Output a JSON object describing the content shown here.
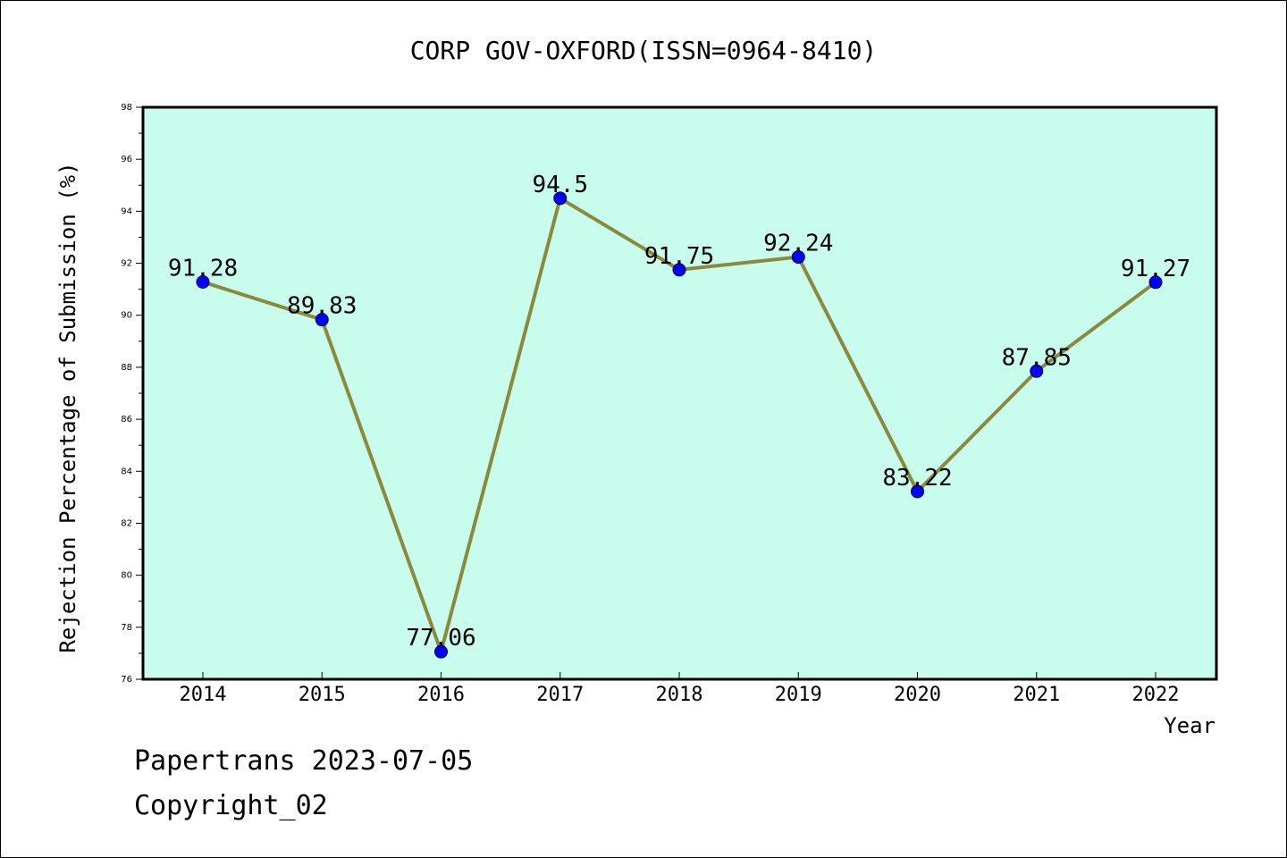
{
  "chart_data": {
    "type": "line",
    "title": "CORP GOV-OXFORD(ISSN=0964-8410)",
    "xlabel": "Year",
    "ylabel": "Rejection Percentage of Submission (%)",
    "categories": [
      "2014",
      "2015",
      "2016",
      "2017",
      "2018",
      "2019",
      "2020",
      "2021",
      "2022"
    ],
    "values": [
      91.28,
      89.83,
      77.06,
      94.5,
      91.75,
      92.24,
      83.22,
      87.85,
      91.27
    ],
    "data_labels": [
      "91.28",
      "89.83",
      "77.06",
      "94.5",
      "91.75",
      "92.24",
      "83.22",
      "87.85",
      "91.27"
    ],
    "ylim": [
      76,
      98
    ],
    "yticks": [
      76,
      78,
      80,
      82,
      84,
      86,
      88,
      90,
      92,
      94,
      96,
      98
    ],
    "ytick_labels": [
      "76",
      "78",
      "80",
      "82",
      "84",
      "86",
      "88",
      "90",
      "92",
      "94",
      "96",
      "98"
    ],
    "grid": false,
    "legend": "none",
    "colors": {
      "plot_background": "#c8fced",
      "line": "#8a8a3a",
      "marker": "#0000ff"
    }
  },
  "footer": {
    "line1": "Papertrans 2023-07-05",
    "line2": "Copyright_02"
  }
}
